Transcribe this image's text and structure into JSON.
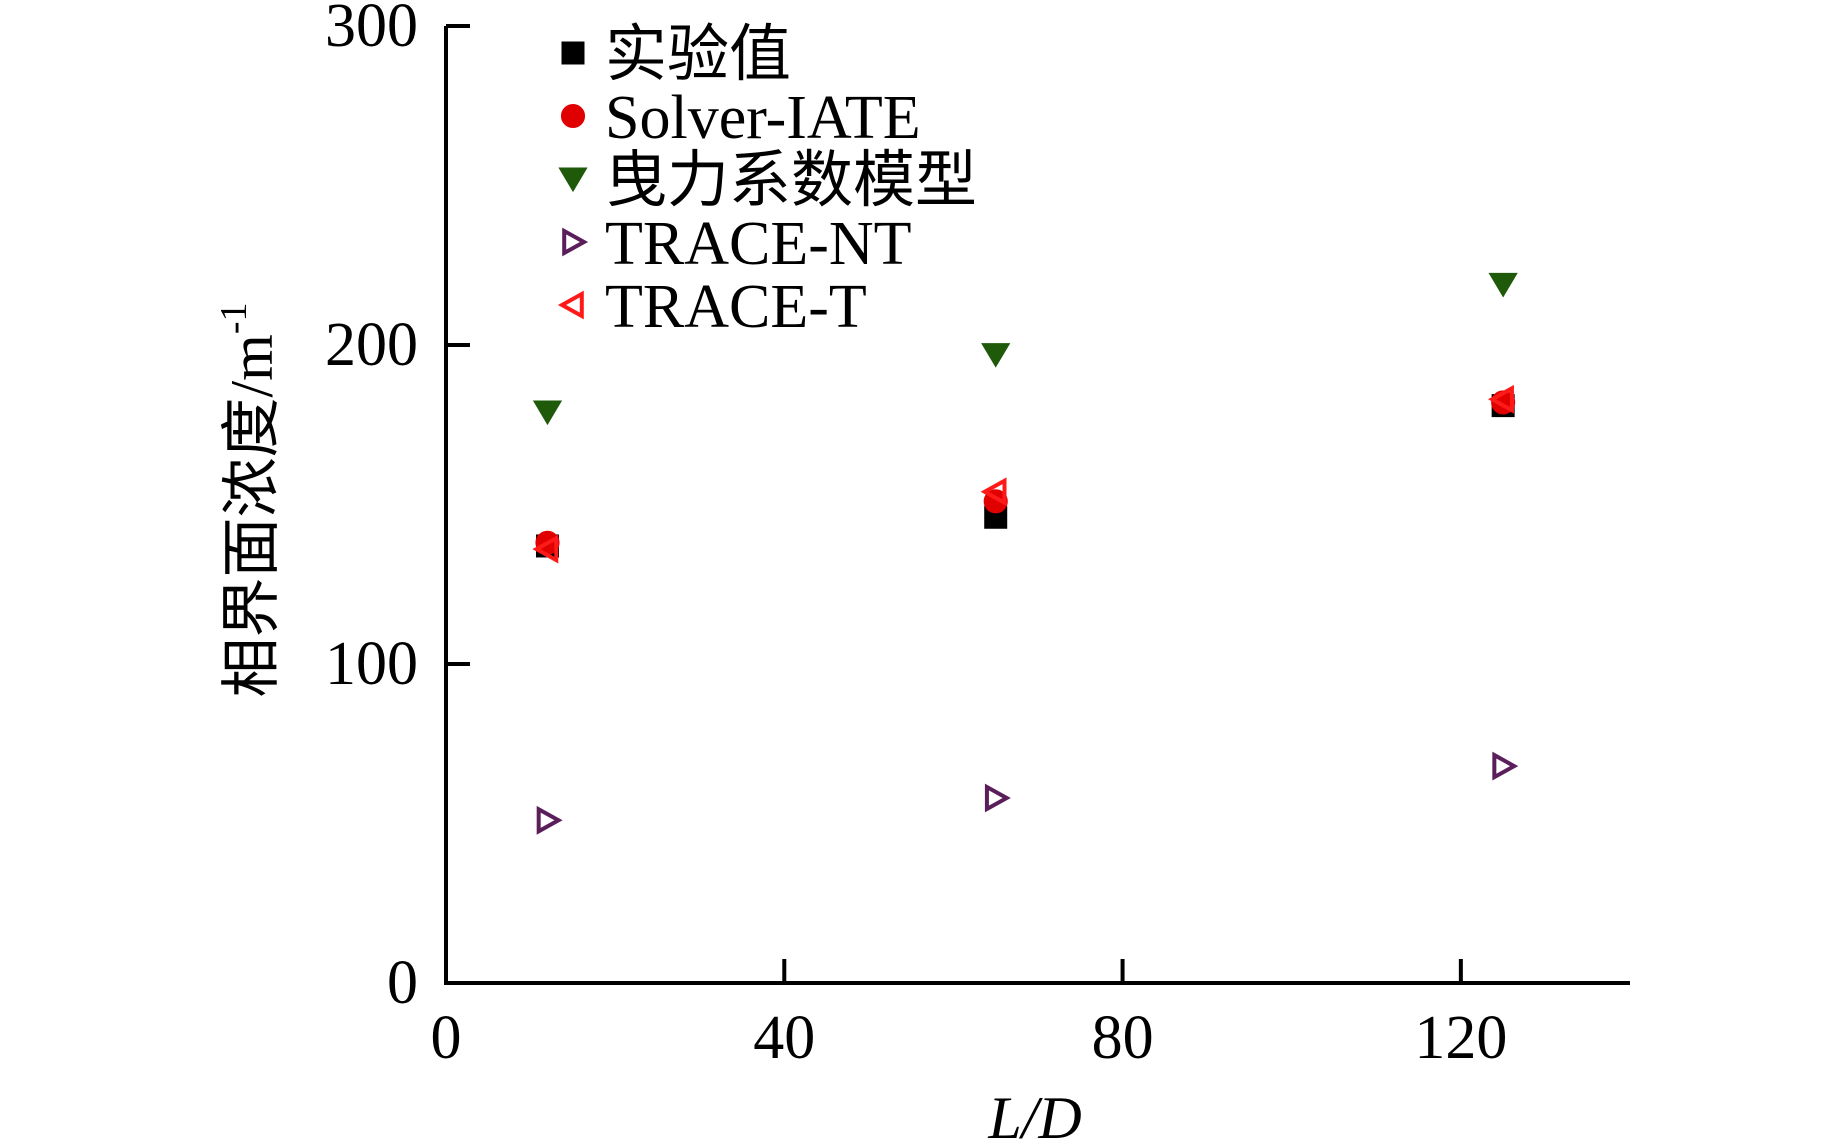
{
  "chart_data": {
    "type": "scatter",
    "xlabel": "L/D",
    "ylabel": "相界面浓度/m",
    "ylabel_superscript": "-1",
    "xlim": [
      0,
      140
    ],
    "ylim": [
      0,
      300
    ],
    "xticks": [
      0,
      40,
      80,
      120
    ],
    "yticks": [
      0,
      100,
      200,
      300
    ],
    "grid": false,
    "legend_position": "top-left",
    "series": [
      {
        "name": "实验值",
        "marker": "square",
        "color": "#000000",
        "filled": true,
        "x": [
          12,
          65,
          125
        ],
        "y": [
          137,
          146,
          181
        ]
      },
      {
        "name": "Solver-IATE",
        "marker": "circle",
        "color": "#e00000",
        "filled": true,
        "x": [
          12,
          65,
          125
        ],
        "y": [
          138,
          151,
          182
        ]
      },
      {
        "name": "曳力系数模型",
        "marker": "triangle-down",
        "color": "#1e5a0a",
        "filled": true,
        "x": [
          12,
          65,
          125
        ],
        "y": [
          179,
          197,
          219
        ]
      },
      {
        "name": "TRACE-NT",
        "marker": "triangle-right",
        "color": "#5a1e5a",
        "filled": false,
        "x": [
          12,
          65,
          125
        ],
        "y": [
          51,
          58,
          68
        ]
      },
      {
        "name": "TRACE-T",
        "marker": "triangle-left",
        "color": "#ff1a1a",
        "filled": false,
        "x": [
          12,
          65,
          125
        ],
        "y": [
          136,
          154,
          183
        ]
      }
    ]
  }
}
